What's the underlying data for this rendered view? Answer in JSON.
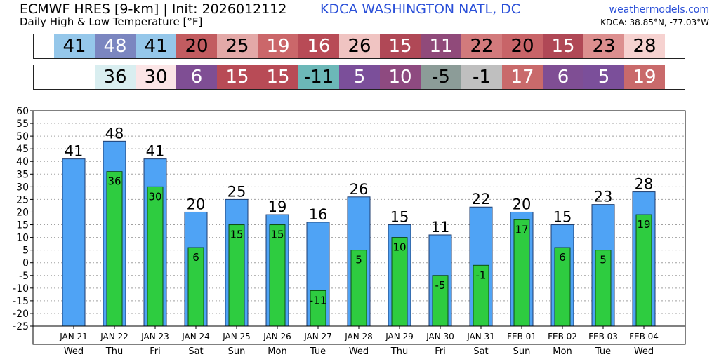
{
  "header": {
    "title": "ECMWF HRES [9-km] | Init: 2026012112",
    "subtitle": "Daily High & Low Temperature [°F]",
    "station": "KDCA WASHINGTON NATL, DC",
    "site": "weathermodels.com",
    "coords": "KDCA: 38.85°N, -77.03°W"
  },
  "colors": {
    "high_bar": "#4fa3f5",
    "low_bar": "#2ecc40",
    "grid": "#a0a0a0"
  },
  "strips": {
    "high": [
      {
        "label": "41",
        "color": "#95c7ea"
      },
      {
        "label": "48",
        "color": "#7b86c0",
        "text_color": "#ffffff"
      },
      {
        "label": "41",
        "color": "#95c7ea"
      },
      {
        "label": "20",
        "color": "#c25c60"
      },
      {
        "label": "25",
        "color": "#e3a9a8"
      },
      {
        "label": "19",
        "color": "#cb676a",
        "text_color": "#ffffff"
      },
      {
        "label": "16",
        "color": "#b84b56",
        "text_color": "#ffffff"
      },
      {
        "label": "26",
        "color": "#f0c4c2"
      },
      {
        "label": "15",
        "color": "#b04856",
        "text_color": "#ffffff"
      },
      {
        "label": "11",
        "color": "#904a7a",
        "text_color": "#ffffff"
      },
      {
        "label": "22",
        "color": "#d27a7c"
      },
      {
        "label": "20",
        "color": "#c86468"
      },
      {
        "label": "15",
        "color": "#b04856",
        "text_color": "#ffffff"
      },
      {
        "label": "23",
        "color": "#dc8f8f"
      },
      {
        "label": "28",
        "color": "#f6d2d0"
      }
    ],
    "low": [
      {
        "label": "",
        "color": "#ffffff"
      },
      {
        "label": "36",
        "color": "#d9eef0"
      },
      {
        "label": "30",
        "color": "#fbe5e6"
      },
      {
        "label": "6",
        "color": "#7f4e94",
        "text_color": "#ffffff"
      },
      {
        "label": "15",
        "color": "#b84b56",
        "text_color": "#ffffff"
      },
      {
        "label": "15",
        "color": "#b84b56",
        "text_color": "#ffffff"
      },
      {
        "label": "-11",
        "color": "#6cb8b8"
      },
      {
        "label": "5",
        "color": "#7b4f9a",
        "text_color": "#ffffff"
      },
      {
        "label": "10",
        "color": "#8e4a80",
        "text_color": "#ffffff"
      },
      {
        "label": "-5",
        "color": "#8c9c98"
      },
      {
        "label": "-1",
        "color": "#bfbfbf"
      },
      {
        "label": "17",
        "color": "#c96a6b",
        "text_color": "#ffffff"
      },
      {
        "label": "6",
        "color": "#7f4e94",
        "text_color": "#ffffff"
      },
      {
        "label": "5",
        "color": "#7b4f9a",
        "text_color": "#ffffff"
      },
      {
        "label": "19",
        "color": "#c96a6b",
        "text_color": "#ffffff"
      }
    ]
  },
  "chart_data": {
    "type": "bar",
    "categories": [
      "JAN 21",
      "JAN 22",
      "JAN 23",
      "JAN 24",
      "JAN 25",
      "JAN 26",
      "JAN 27",
      "JAN 28",
      "JAN 29",
      "JAN 30",
      "JAN 31",
      "FEB 01",
      "FEB 02",
      "FEB 03",
      "FEB 04"
    ],
    "weekdays": [
      "Wed",
      "Thu",
      "Fri",
      "Sat",
      "Sun",
      "Mon",
      "Tue",
      "Wed",
      "Thu",
      "Fri",
      "Sat",
      "Sun",
      "Mon",
      "Tue",
      "Wed"
    ],
    "series": [
      {
        "values": [
          41,
          48,
          41,
          20,
          25,
          19,
          16,
          26,
          15,
          11,
          22,
          20,
          15,
          23,
          28
        ]
      },
      {
        "values": [
          null,
          36,
          30,
          6,
          15,
          15,
          -11,
          5,
          10,
          -5,
          -1,
          17,
          6,
          5,
          19
        ]
      }
    ],
    "ylim": [
      -25,
      60
    ],
    "yticks": [
      60,
      55,
      50,
      45,
      40,
      35,
      30,
      25,
      20,
      15,
      10,
      5,
      0,
      -5,
      -10,
      -15,
      -20,
      -25
    ],
    "grid": true
  }
}
